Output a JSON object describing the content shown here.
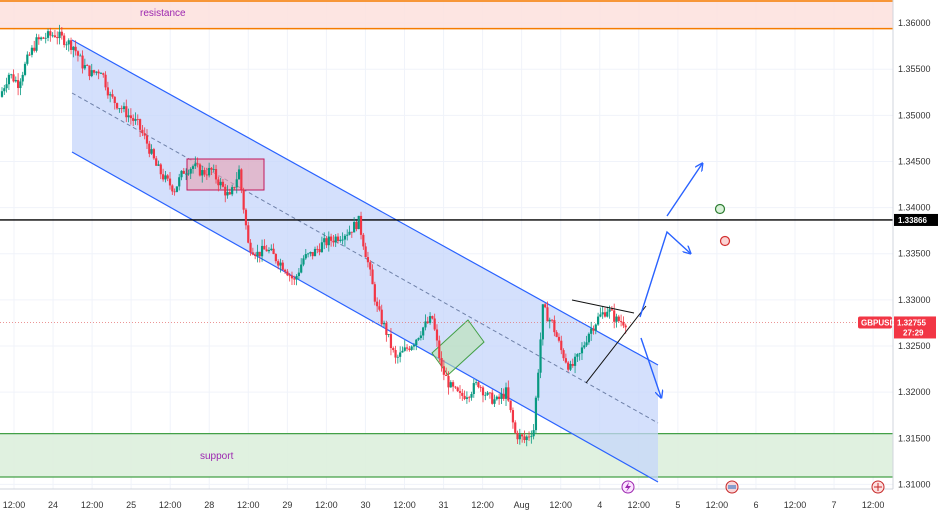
{
  "chart_data": {
    "type": "candlestick",
    "symbol": "GBPUSD",
    "last_price": "1.32755",
    "countdown": "27:29",
    "level_label": "1.33866",
    "ylim": [
      1.3095,
      1.3625
    ],
    "y_ticks": [
      "1.36000",
      "1.35500",
      "1.35000",
      "1.34500",
      "1.34000",
      "1.33500",
      "1.33000",
      "1.32500",
      "1.32000",
      "1.31500",
      "1.31000"
    ],
    "x_ticks": [
      "12:00",
      "24",
      "12:00",
      "25",
      "12:00",
      "28",
      "12:00",
      "29",
      "12:00",
      "30",
      "12:00",
      "31",
      "12:00",
      "Aug",
      "12:00",
      "4",
      "12:00",
      "5",
      "12:00",
      "6",
      "12:00",
      "7",
      "12:00"
    ],
    "zones": {
      "resistance": {
        "label": "resistance",
        "from": 1.3594,
        "to": 1.3625
      },
      "support": {
        "label": "support",
        "from": 1.3108,
        "to": 1.3155
      }
    },
    "horizontal_line": 1.33866,
    "channel": {
      "upper": [
        [
          1.3585,
          1.311
        ],
        [
          1.3585,
          1.311
        ]
      ],
      "note": ""
    },
    "price_path": [
      1.352,
      1.3545,
      1.3535,
      1.356,
      1.358,
      1.3585,
      1.3588,
      1.3582,
      1.3575,
      1.3555,
      1.3545,
      1.355,
      1.352,
      1.351,
      1.35,
      1.349,
      1.347,
      1.3445,
      1.343,
      1.342,
      1.344,
      1.3445,
      1.3438,
      1.344,
      1.3425,
      1.341,
      1.344,
      1.336,
      1.335,
      1.3355,
      1.3345,
      1.3335,
      1.332,
      1.3345,
      1.335,
      1.336,
      1.3365,
      1.337,
      1.3375,
      1.3385,
      1.334,
      1.329,
      1.3265,
      1.3235,
      1.3245,
      1.3255,
      1.327,
      1.328,
      1.3225,
      1.3205,
      1.3195,
      1.32,
      1.321,
      1.3195,
      1.319,
      1.32,
      1.3155,
      1.3148,
      1.316,
      1.329,
      1.3275,
      1.3245,
      1.3225,
      1.324,
      1.3265,
      1.328,
      1.329,
      1.3278,
      1.3276
    ]
  }
}
